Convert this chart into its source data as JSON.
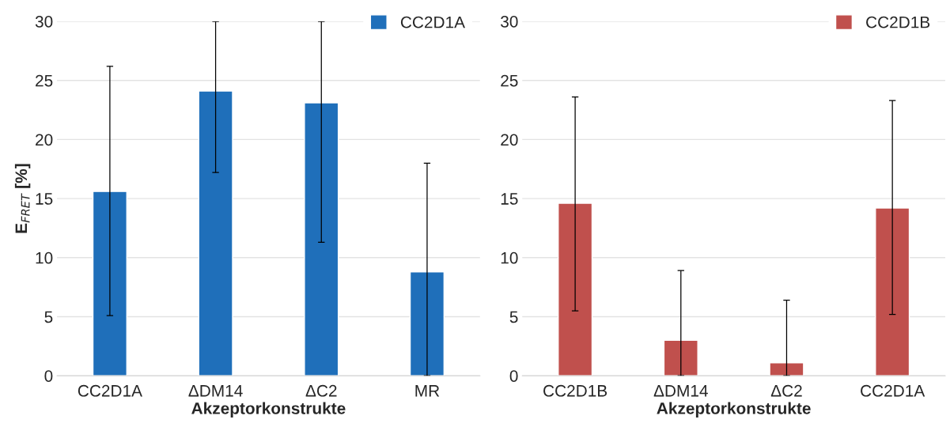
{
  "chart_data": [
    {
      "type": "bar",
      "categories": [
        "CC2D1A",
        "ΔDM14",
        "ΔC2",
        "MR"
      ],
      "xlabel": "Akzeptorkonstrukte",
      "ylabel": "E$_{FRET}$ [%]",
      "series": [
        {
          "name": "CC2D1A",
          "color": "#1f6fba",
          "values": [
            15.6,
            24.1,
            23.1,
            8.8
          ],
          "errors": [
            [
              5.1,
              26.2
            ],
            [
              17.2,
              30
            ],
            [
              11.3,
              30
            ],
            [
              0,
              18.0
            ]
          ]
        }
      ],
      "ylim": [
        0,
        30
      ],
      "yticks": [
        0,
        5,
        10,
        15,
        20,
        25,
        30
      ],
      "grid": "y",
      "legend": "top right"
    },
    {
      "type": "bar",
      "categories": [
        "CC2D1B",
        "ΔDM14",
        "ΔC2",
        "CC2D1A"
      ],
      "xlabel": "Akzeptorkonstrukte",
      "series": [
        {
          "name": "CC2D1B",
          "color": "#c0504d",
          "values": [
            14.6,
            3.0,
            1.1,
            14.2
          ],
          "errors": [
            [
              5.5,
              23.6
            ],
            [
              0,
              8.9
            ],
            [
              0,
              6.4
            ],
            [
              5.2,
              23.3
            ]
          ]
        }
      ],
      "ylim": [
        0,
        30
      ],
      "yticks": [
        0,
        5,
        10,
        15,
        20,
        25,
        30
      ],
      "grid": "y",
      "legend": "top right"
    }
  ]
}
